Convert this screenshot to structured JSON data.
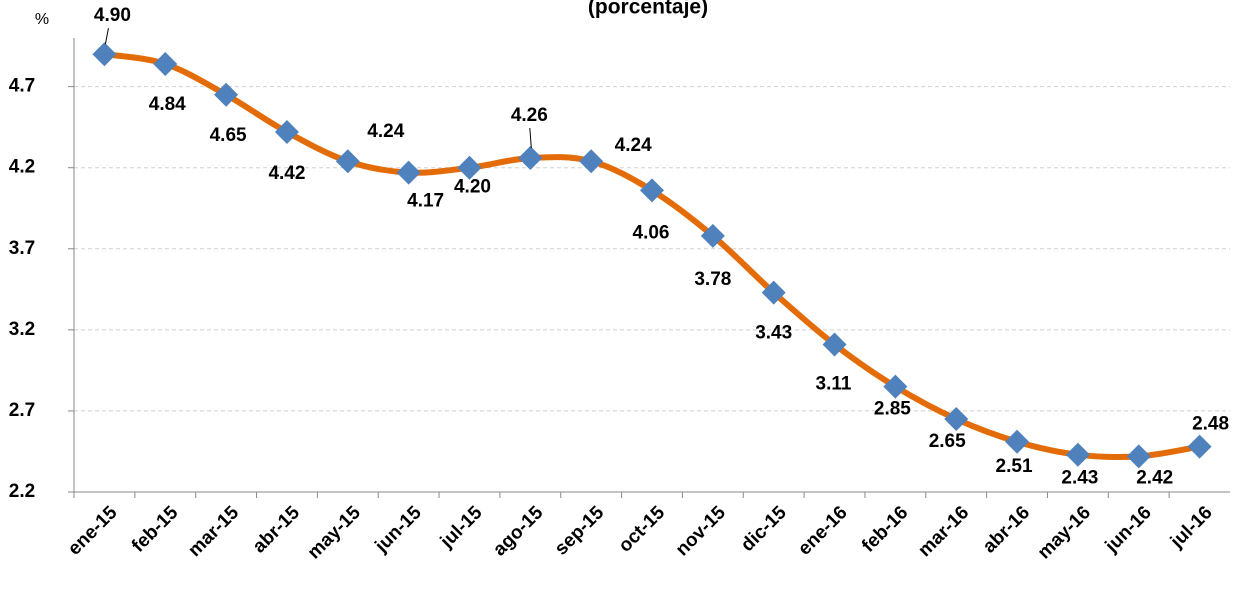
{
  "chart_data": {
    "type": "line",
    "title": "(porcentaje)",
    "y_label": "%",
    "categories": [
      "ene-15",
      "feb-15",
      "mar-15",
      "abr-15",
      "may-15",
      "jun-15",
      "jul-15",
      "ago-15",
      "sep-15",
      "oct-15",
      "nov-15",
      "dic-15",
      "ene-16",
      "feb-16",
      "mar-16",
      "abr-16",
      "may-16",
      "jun-16",
      "jul-16"
    ],
    "series": [
      {
        "color": "#E36C09",
        "marker_color": "#4F81BD",
        "values": [
          4.9,
          4.84,
          4.65,
          4.42,
          4.24,
          4.17,
          4.2,
          4.26,
          4.24,
          4.06,
          3.78,
          3.43,
          3.11,
          2.85,
          2.65,
          2.51,
          2.43,
          2.42,
          2.48
        ],
        "value_labels": [
          "4.90",
          "4.84",
          "4.65",
          "4.42",
          "4.24",
          "4.17",
          "4.20",
          "4.26",
          "4.24",
          "4.06",
          "3.78",
          "3.43",
          "3.11",
          "2.85",
          "2.65",
          "2.51",
          "2.43",
          "2.42",
          "2.48"
        ]
      }
    ],
    "ylim": [
      2.2,
      5.0
    ],
    "yticks": [
      2.2,
      2.7,
      3.2,
      3.7,
      4.2,
      4.7
    ],
    "grid": true
  }
}
